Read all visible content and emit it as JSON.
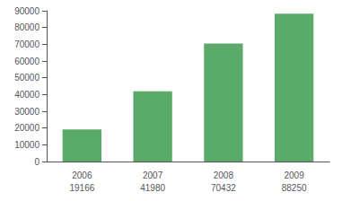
{
  "chart_data": {
    "type": "bar",
    "categories": [
      "2006",
      "2007",
      "2008",
      "2009"
    ],
    "values": [
      19166,
      41980,
      70432,
      88250
    ],
    "color": "#5aaa6a",
    "ylim": [
      0,
      90000
    ],
    "yticks": [
      0,
      10000,
      20000,
      30000,
      40000,
      50000,
      60000,
      70000,
      80000,
      90000
    ],
    "grid": false,
    "data_labels": true
  }
}
